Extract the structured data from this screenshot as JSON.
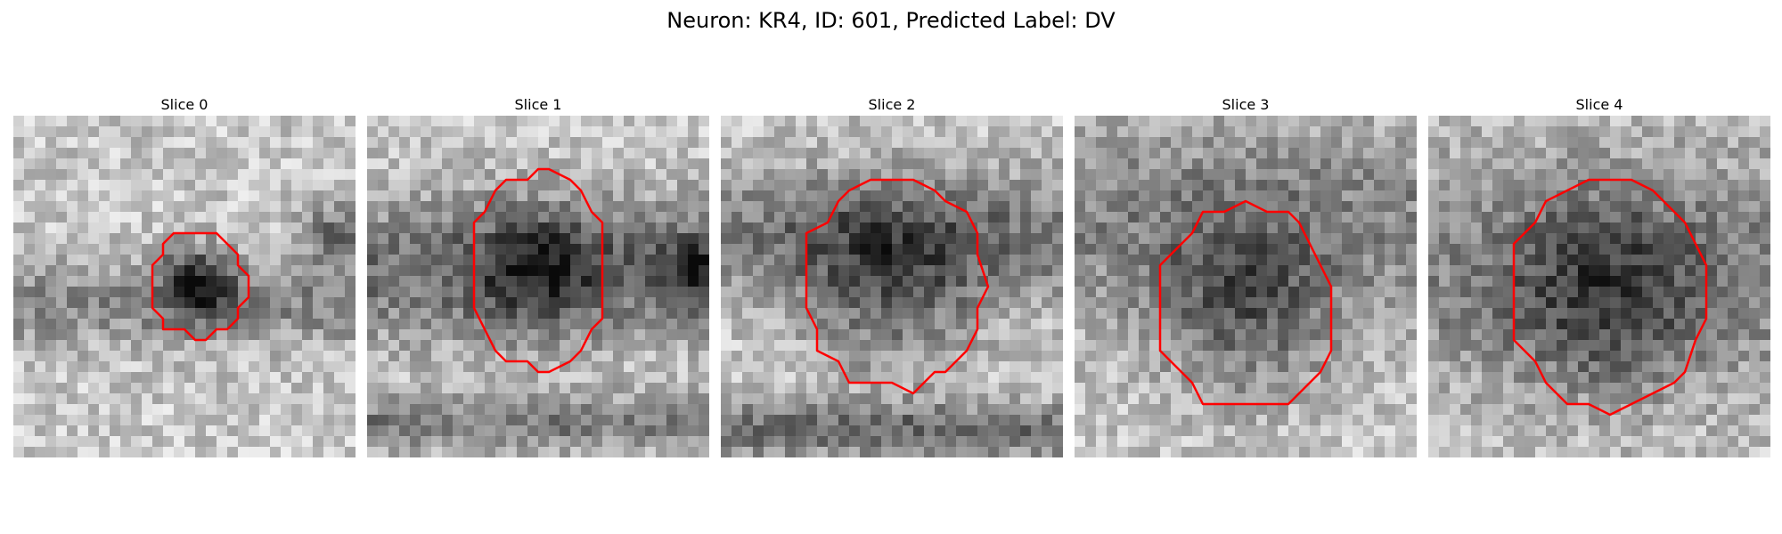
{
  "figure": {
    "title": "Neuron: KR4, ID: 601, Predicted Label: DV"
  },
  "style": {
    "contour_color": "#ff0000",
    "colormap": "gray"
  },
  "panels": [
    {
      "title": "Slice 0"
    },
    {
      "title": "Slice 1"
    },
    {
      "title": "Slice 2"
    },
    {
      "title": "Slice 3"
    },
    {
      "title": "Slice 4"
    }
  ]
}
